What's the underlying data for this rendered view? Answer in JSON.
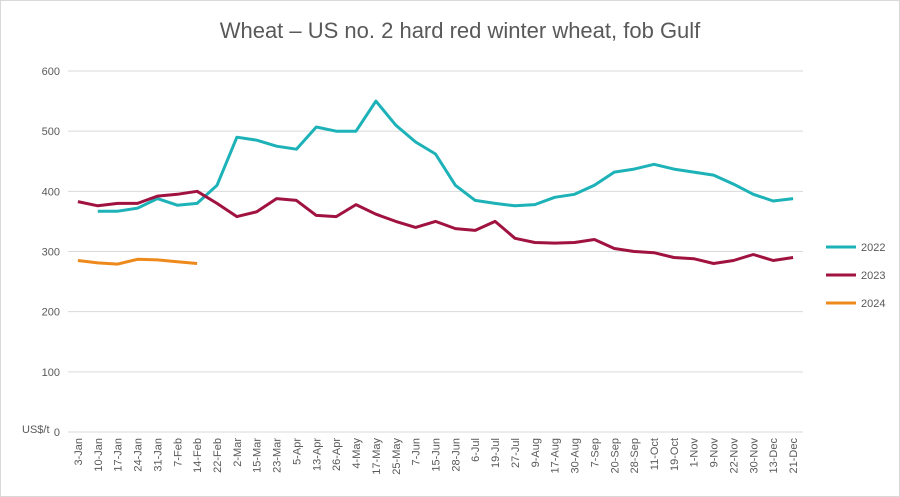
{
  "chart_data": {
    "type": "line",
    "title": "Wheat – US no. 2 hard red winter wheat, fob Gulf",
    "y_label": "US$/t",
    "categories": [
      "3-Jan",
      "10-Jan",
      "17-Jan",
      "24-Jan",
      "31-Jan",
      "7-Feb",
      "14-Feb",
      "22-Feb",
      "2-Mar",
      "15-Mar",
      "23-Mar",
      "5-Apr",
      "13-Apr",
      "26-Apr",
      "4-May",
      "17-May",
      "25-May",
      "7-Jun",
      "15-Jun",
      "28-Jun",
      "6-Jul",
      "19-Jul",
      "27-Jul",
      "9-Aug",
      "17-Aug",
      "30-Aug",
      "7-Sep",
      "20-Sep",
      "28-Sep",
      "11-Oct",
      "19-Oct",
      "1-Nov",
      "9-Nov",
      "22-Nov",
      "30-Nov",
      "13-Dec",
      "21-Dec"
    ],
    "series": [
      {
        "name": "2022",
        "color": "#1cb2b8",
        "values": [
          null,
          367,
          367,
          372,
          388,
          377,
          380,
          410,
          490,
          485,
          475,
          470,
          507,
          500,
          500,
          550,
          510,
          482,
          462,
          410,
          385,
          380,
          376,
          378,
          390,
          395,
          410,
          432,
          437,
          445,
          437,
          432,
          427,
          412,
          395,
          384,
          388
        ]
      },
      {
        "name": "2023",
        "color": "#a0123f",
        "values": [
          383,
          376,
          380,
          380,
          392,
          395,
          400,
          380,
          358,
          366,
          388,
          385,
          360,
          358,
          378,
          362,
          350,
          340,
          350,
          338,
          335,
          350,
          322,
          315,
          314,
          315,
          320,
          305,
          300,
          298,
          290,
          288,
          280,
          285,
          295,
          285,
          290
        ]
      },
      {
        "name": "2024",
        "color": "#ee8a1c",
        "values": [
          285,
          281,
          279,
          287,
          286,
          283,
          280,
          null,
          null,
          null,
          null,
          null,
          null,
          null,
          null,
          null,
          null,
          null,
          null,
          null,
          null,
          null,
          null,
          null,
          null,
          null,
          null,
          null,
          null,
          null,
          null,
          null,
          null,
          null,
          null,
          null,
          null
        ]
      }
    ],
    "ylim": [
      0,
      600
    ],
    "yticks": [
      0,
      100,
      200,
      300,
      400,
      500,
      600
    ],
    "grid": true,
    "legend": "right"
  }
}
